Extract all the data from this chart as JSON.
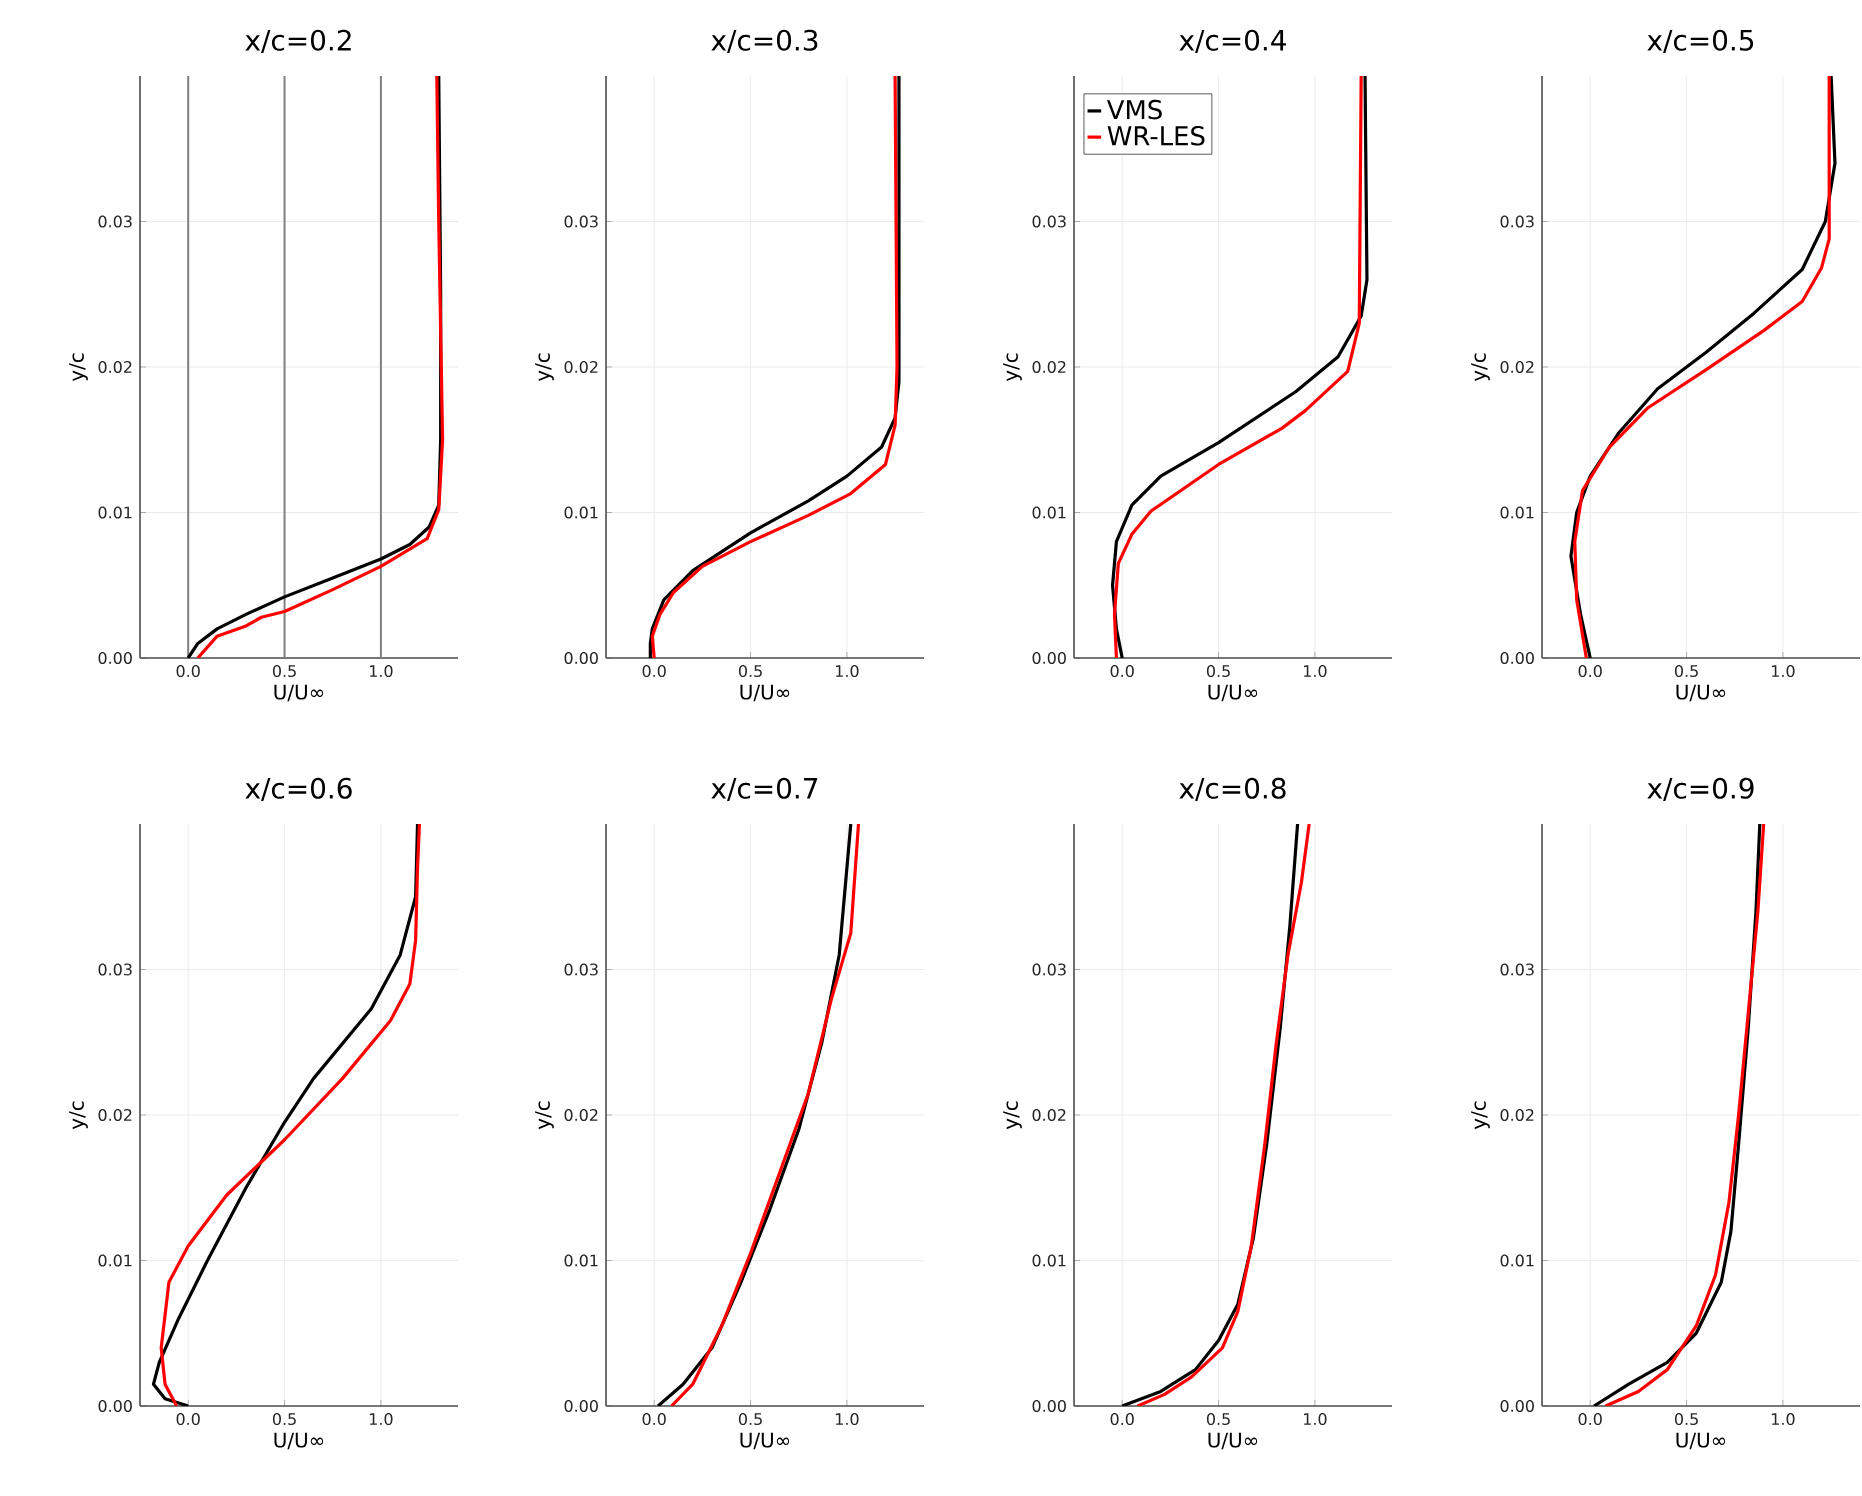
{
  "chart_data": [
    {
      "type": "line",
      "title": "x/c=0.2",
      "xlabel": "U/U∞",
      "ylabel": "y/c",
      "xlim": [
        -0.25,
        1.4
      ],
      "ylim": [
        0,
        0.04
      ],
      "xticks": [
        {
          "value": 0,
          "label": "0.0"
        },
        {
          "value": 0.5,
          "label": "0.5"
        },
        {
          "value": 1,
          "label": "1.0"
        }
      ],
      "yticks": [
        {
          "value": 0,
          "label": "0.00"
        },
        {
          "value": 0.01,
          "label": "0.01"
        },
        {
          "value": 0.02,
          "label": "0.02"
        },
        {
          "value": 0.03,
          "label": "0.03"
        }
      ],
      "grid": "y",
      "line_style": "solid",
      "ref_lines": [
        {
          "axis": "x",
          "value": 0,
          "color": "#808080"
        },
        {
          "axis": "x",
          "value": 0.5,
          "color": "#808080"
        },
        {
          "axis": "x",
          "value": 1,
          "color": "#808080"
        }
      ],
      "series": [
        {
          "color": "#000000",
          "x": [
            0,
            0.05,
            0.15,
            0.3,
            0.5,
            0.75,
            1.0,
            1.15,
            1.25,
            1.3,
            1.31,
            1.31,
            1.3
          ],
          "values": [
            0,
            0.001,
            0.002,
            0.003,
            0.0042,
            0.0055,
            0.0068,
            0.0078,
            0.009,
            0.0105,
            0.015,
            0.025,
            0.04
          ]
        },
        {
          "color": "#ff0000",
          "x": [
            0.05,
            0.15,
            0.3,
            0.38,
            0.5,
            0.75,
            1.0,
            1.24,
            1.3,
            1.32,
            1.3,
            1.29
          ],
          "values": [
            0,
            0.0015,
            0.0022,
            0.0028,
            0.0032,
            0.0047,
            0.0063,
            0.0082,
            0.0102,
            0.015,
            0.03,
            0.04
          ]
        }
      ]
    },
    {
      "type": "line",
      "title": "x/c=0.3",
      "xlabel": "U/U∞",
      "ylabel": "y/c",
      "xlim": [
        -0.25,
        1.4
      ],
      "ylim": [
        0,
        0.04
      ],
      "xticks": [
        {
          "value": 0,
          "label": "0.0"
        },
        {
          "value": 0.5,
          "label": "0.5"
        },
        {
          "value": 1,
          "label": "1.0"
        }
      ],
      "yticks": [
        {
          "value": 0,
          "label": "0.00"
        },
        {
          "value": 0.01,
          "label": "0.01"
        },
        {
          "value": 0.02,
          "label": "0.02"
        },
        {
          "value": 0.03,
          "label": "0.03"
        }
      ],
      "grid": true,
      "line_style": "solid",
      "series": [
        {
          "color": "#000000",
          "x": [
            -0.02,
            -0.02,
            -0.01,
            0.05,
            0.2,
            0.5,
            0.8,
            1.0,
            1.18,
            1.25,
            1.27,
            1.27
          ],
          "values": [
            0,
            0.001,
            0.002,
            0.004,
            0.006,
            0.0086,
            0.0108,
            0.0125,
            0.0145,
            0.0165,
            0.019,
            0.04
          ]
        },
        {
          "color": "#ff0000",
          "x": [
            0.0,
            -0.01,
            0.03,
            0.1,
            0.25,
            0.5,
            0.8,
            1.02,
            1.2,
            1.25,
            1.26,
            1.25
          ],
          "values": [
            0,
            0.0015,
            0.003,
            0.0045,
            0.0063,
            0.008,
            0.0098,
            0.0113,
            0.0133,
            0.016,
            0.02,
            0.04
          ]
        }
      ]
    },
    {
      "type": "line",
      "title": "x/c=0.4",
      "xlabel": "U/U∞",
      "ylabel": "y/c",
      "xlim": [
        -0.25,
        1.4
      ],
      "ylim": [
        0,
        0.04
      ],
      "xticks": [
        {
          "value": 0,
          "label": "0.0"
        },
        {
          "value": 0.5,
          "label": "0.5"
        },
        {
          "value": 1,
          "label": "1.0"
        }
      ],
      "yticks": [
        {
          "value": 0,
          "label": "0.00"
        },
        {
          "value": 0.01,
          "label": "0.01"
        },
        {
          "value": 0.02,
          "label": "0.02"
        },
        {
          "value": 0.03,
          "label": "0.03"
        }
      ],
      "grid": true,
      "line_style": "solid",
      "legend": "top left",
      "series": [
        {
          "name": "VMS",
          "color": "#000000",
          "x": [
            0,
            -0.03,
            -0.05,
            -0.03,
            0.05,
            0.2,
            0.5,
            0.9,
            1.12,
            1.24,
            1.27,
            1.26
          ],
          "values": [
            0,
            0.002,
            0.005,
            0.008,
            0.0105,
            0.0125,
            0.0148,
            0.0183,
            0.0207,
            0.0235,
            0.026,
            0.04
          ]
        },
        {
          "name": "WR-LES",
          "color": "#ff0000",
          "x": [
            -0.03,
            -0.04,
            -0.02,
            0.05,
            0.15,
            0.5,
            0.83,
            0.95,
            1.17,
            1.23,
            1.24
          ],
          "values": [
            0,
            0.003,
            0.0065,
            0.0085,
            0.0101,
            0.0133,
            0.0158,
            0.017,
            0.0197,
            0.023,
            0.04
          ]
        }
      ]
    },
    {
      "type": "line",
      "title": "x/c=0.5",
      "xlabel": "U/U∞",
      "ylabel": "y/c",
      "xlim": [
        -0.25,
        1.4
      ],
      "ylim": [
        0,
        0.04
      ],
      "xticks": [
        {
          "value": 0,
          "label": "0.0"
        },
        {
          "value": 0.5,
          "label": "0.5"
        },
        {
          "value": 1,
          "label": "1.0"
        }
      ],
      "yticks": [
        {
          "value": 0,
          "label": "0.00"
        },
        {
          "value": 0.01,
          "label": "0.01"
        },
        {
          "value": 0.02,
          "label": "0.02"
        },
        {
          "value": 0.03,
          "label": "0.03"
        }
      ],
      "grid": true,
      "line_style": "solid",
      "series": [
        {
          "color": "#000000",
          "x": [
            0,
            -0.05,
            -0.1,
            -0.07,
            0.0,
            0.15,
            0.35,
            0.6,
            0.85,
            1.1,
            1.22,
            1.27,
            1.25
          ],
          "values": [
            0,
            0.003,
            0.007,
            0.01,
            0.0125,
            0.0155,
            0.0185,
            0.021,
            0.0237,
            0.0267,
            0.03,
            0.034,
            0.04
          ]
        },
        {
          "color": "#ff0000",
          "x": [
            -0.02,
            -0.07,
            -0.08,
            -0.04,
            0.1,
            0.3,
            0.6,
            0.9,
            1.1,
            1.2,
            1.24,
            1.24
          ],
          "values": [
            0,
            0.004,
            0.008,
            0.0115,
            0.0145,
            0.0172,
            0.0198,
            0.0225,
            0.0245,
            0.0268,
            0.0288,
            0.04
          ]
        }
      ]
    },
    {
      "type": "line",
      "title": "x/c=0.6",
      "xlabel": "U/U∞",
      "ylabel": "y/c",
      "xlim": [
        -0.25,
        1.4
      ],
      "ylim": [
        0,
        0.04
      ],
      "xticks": [
        {
          "value": 0,
          "label": "0.0"
        },
        {
          "value": 0.5,
          "label": "0.5"
        },
        {
          "value": 1,
          "label": "1.0"
        }
      ],
      "yticks": [
        {
          "value": 0,
          "label": "0.00"
        },
        {
          "value": 0.01,
          "label": "0.01"
        },
        {
          "value": 0.02,
          "label": "0.02"
        },
        {
          "value": 0.03,
          "label": "0.03"
        }
      ],
      "grid": true,
      "line_style": "solid",
      "series": [
        {
          "color": "#000000",
          "x": [
            0,
            -0.12,
            -0.18,
            -0.15,
            -0.05,
            0.1,
            0.3,
            0.5,
            0.65,
            0.95,
            1.1,
            1.18,
            1.19
          ],
          "values": [
            0,
            0.0005,
            0.0015,
            0.003,
            0.006,
            0.01,
            0.015,
            0.0195,
            0.0225,
            0.0273,
            0.031,
            0.035,
            0.04
          ]
        },
        {
          "color": "#ff0000",
          "x": [
            -0.06,
            -0.12,
            -0.14,
            -0.1,
            0.0,
            0.2,
            0.5,
            0.8,
            1.05,
            1.15,
            1.18,
            1.19,
            1.2
          ],
          "values": [
            0,
            0.0015,
            0.004,
            0.0085,
            0.011,
            0.0145,
            0.0183,
            0.0225,
            0.0265,
            0.029,
            0.032,
            0.037,
            0.04
          ]
        }
      ]
    },
    {
      "type": "line",
      "title": "x/c=0.7",
      "xlabel": "U/U∞",
      "ylabel": "y/c",
      "xlim": [
        -0.25,
        1.4
      ],
      "ylim": [
        0,
        0.04
      ],
      "xticks": [
        {
          "value": 0,
          "label": "0.0"
        },
        {
          "value": 0.5,
          "label": "0.5"
        },
        {
          "value": 1,
          "label": "1.0"
        }
      ],
      "yticks": [
        {
          "value": 0,
          "label": "0.00"
        },
        {
          "value": 0.01,
          "label": "0.01"
        },
        {
          "value": 0.02,
          "label": "0.02"
        },
        {
          "value": 0.03,
          "label": "0.03"
        }
      ],
      "grid": true,
      "line_style": "solid",
      "series": [
        {
          "color": "#000000",
          "x": [
            0.02,
            0.15,
            0.3,
            0.45,
            0.6,
            0.75,
            0.87,
            0.96,
            1.02
          ],
          "values": [
            0,
            0.0015,
            0.004,
            0.0085,
            0.0135,
            0.019,
            0.025,
            0.031,
            0.04
          ]
        },
        {
          "color": "#ff0000",
          "x": [
            0.09,
            0.2,
            0.35,
            0.5,
            0.65,
            0.8,
            0.92,
            1.02,
            1.06
          ],
          "values": [
            0,
            0.0015,
            0.0055,
            0.0105,
            0.016,
            0.0215,
            0.028,
            0.0325,
            0.04
          ]
        }
      ]
    },
    {
      "type": "line",
      "title": "x/c=0.8",
      "xlabel": "U/U∞",
      "ylabel": "y/c",
      "xlim": [
        -0.25,
        1.4
      ],
      "ylim": [
        0,
        0.04
      ],
      "xticks": [
        {
          "value": 0,
          "label": "0.0"
        },
        {
          "value": 0.5,
          "label": "0.5"
        },
        {
          "value": 1,
          "label": "1.0"
        }
      ],
      "yticks": [
        {
          "value": 0,
          "label": "0.00"
        },
        {
          "value": 0.01,
          "label": "0.01"
        },
        {
          "value": 0.02,
          "label": "0.02"
        },
        {
          "value": 0.03,
          "label": "0.03"
        }
      ],
      "grid": true,
      "line_style": "solid",
      "series": [
        {
          "color": "#000000",
          "x": [
            0,
            0.2,
            0.38,
            0.5,
            0.6,
            0.68,
            0.75,
            0.82,
            0.87,
            0.91
          ],
          "values": [
            0,
            0.001,
            0.0025,
            0.0045,
            0.007,
            0.0115,
            0.018,
            0.026,
            0.033,
            0.04
          ]
        },
        {
          "color": "#ff0000",
          "x": [
            0.08,
            0.22,
            0.36,
            0.52,
            0.6,
            0.67,
            0.74,
            0.8,
            0.86,
            0.93,
            0.97
          ],
          "values": [
            0,
            0.0008,
            0.002,
            0.004,
            0.0065,
            0.011,
            0.018,
            0.025,
            0.031,
            0.036,
            0.04
          ]
        }
      ]
    },
    {
      "type": "line",
      "title": "x/c=0.9",
      "xlabel": "U/U∞",
      "ylabel": "y/c",
      "xlim": [
        -0.25,
        1.4
      ],
      "ylim": [
        0,
        0.04
      ],
      "xticks": [
        {
          "value": 0,
          "label": "0.0"
        },
        {
          "value": 0.5,
          "label": "0.5"
        },
        {
          "value": 1,
          "label": "1.0"
        }
      ],
      "yticks": [
        {
          "value": 0,
          "label": "0.00"
        },
        {
          "value": 0.01,
          "label": "0.01"
        },
        {
          "value": 0.02,
          "label": "0.02"
        },
        {
          "value": 0.03,
          "label": "0.03"
        }
      ],
      "grid": true,
      "line_style": "solid",
      "series": [
        {
          "color": "#000000",
          "x": [
            0.02,
            0.2,
            0.4,
            0.55,
            0.68,
            0.73,
            0.77,
            0.82,
            0.86,
            0.88
          ],
          "values": [
            0,
            0.0015,
            0.003,
            0.005,
            0.0085,
            0.012,
            0.018,
            0.026,
            0.034,
            0.04
          ]
        },
        {
          "color": "#ff0000",
          "x": [
            0.08,
            0.25,
            0.4,
            0.55,
            0.65,
            0.72,
            0.77,
            0.82,
            0.87,
            0.9
          ],
          "values": [
            0,
            0.001,
            0.0025,
            0.0055,
            0.009,
            0.014,
            0.02,
            0.027,
            0.034,
            0.04
          ]
        }
      ]
    }
  ]
}
